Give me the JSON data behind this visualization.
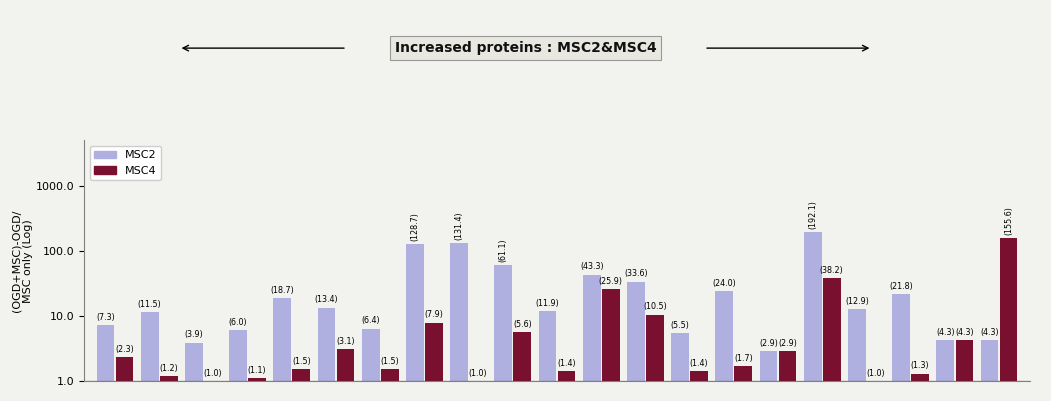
{
  "msc2_values": [
    7.3,
    11.5,
    3.9,
    6.0,
    18.7,
    13.4,
    6.4,
    128.7,
    131.4,
    61.1,
    11.9,
    43.3,
    33.6,
    5.5,
    24.0,
    2.9,
    192.1,
    12.9,
    21.8,
    4.3,
    4.3
  ],
  "msc4_values": [
    2.3,
    1.2,
    1.0,
    1.1,
    1.5,
    3.1,
    1.5,
    7.9,
    1.0,
    5.6,
    1.4,
    25.9,
    10.5,
    1.4,
    1.7,
    2.9,
    38.2,
    1.0,
    1.3,
    4.3,
    155.6
  ],
  "msc2_labels": [
    "(7.3)",
    "(11.5)",
    "(3.9)",
    "(6.0)",
    "(18.7)",
    "(13.4)",
    "(6.4)",
    "(128.7)",
    "(131.4)",
    "(61.1)",
    "(11.9)",
    "(43.3)",
    "(33.6)",
    "(5.5)",
    "(24.0)",
    "(2.9)",
    "(192.1)",
    "(12.9)",
    "(21.8)",
    "(4.3)",
    "(4.3)"
  ],
  "msc4_labels": [
    "(2.3)",
    "(1.2)",
    "(1.0)",
    "(1.1)",
    "(1.5)",
    "(3.1)",
    "(1.5)",
    "(7.9)",
    "(1.0)",
    "(5.6)",
    "(1.4)",
    "(25.9)",
    "(10.5)",
    "(1.4)",
    "(1.7)",
    "(2.9)",
    "(38.2)",
    "(1.0)",
    "(1.3)",
    "(4.3)",
    "(155.6)"
  ],
  "msc2_color": "#b0b0e0",
  "msc4_color": "#7a1030",
  "ylabel": "(OGD+MSC)-OGD/\nMSC only (Log)",
  "title": "Increased proteins : MSC2&MSC4",
  "ylim_min": 1.0,
  "ylim_max": 5000.0,
  "yticks": [
    1.0,
    10.0,
    100.0,
    1000.0
  ],
  "ytick_labels": [
    "1.0",
    "10.0",
    "100.0",
    "1000.0"
  ],
  "legend_msc2": "MSC2",
  "legend_msc4": "MSC4",
  "bg_color": "#f2f2ee",
  "title_box_color": "#e8e8e0"
}
